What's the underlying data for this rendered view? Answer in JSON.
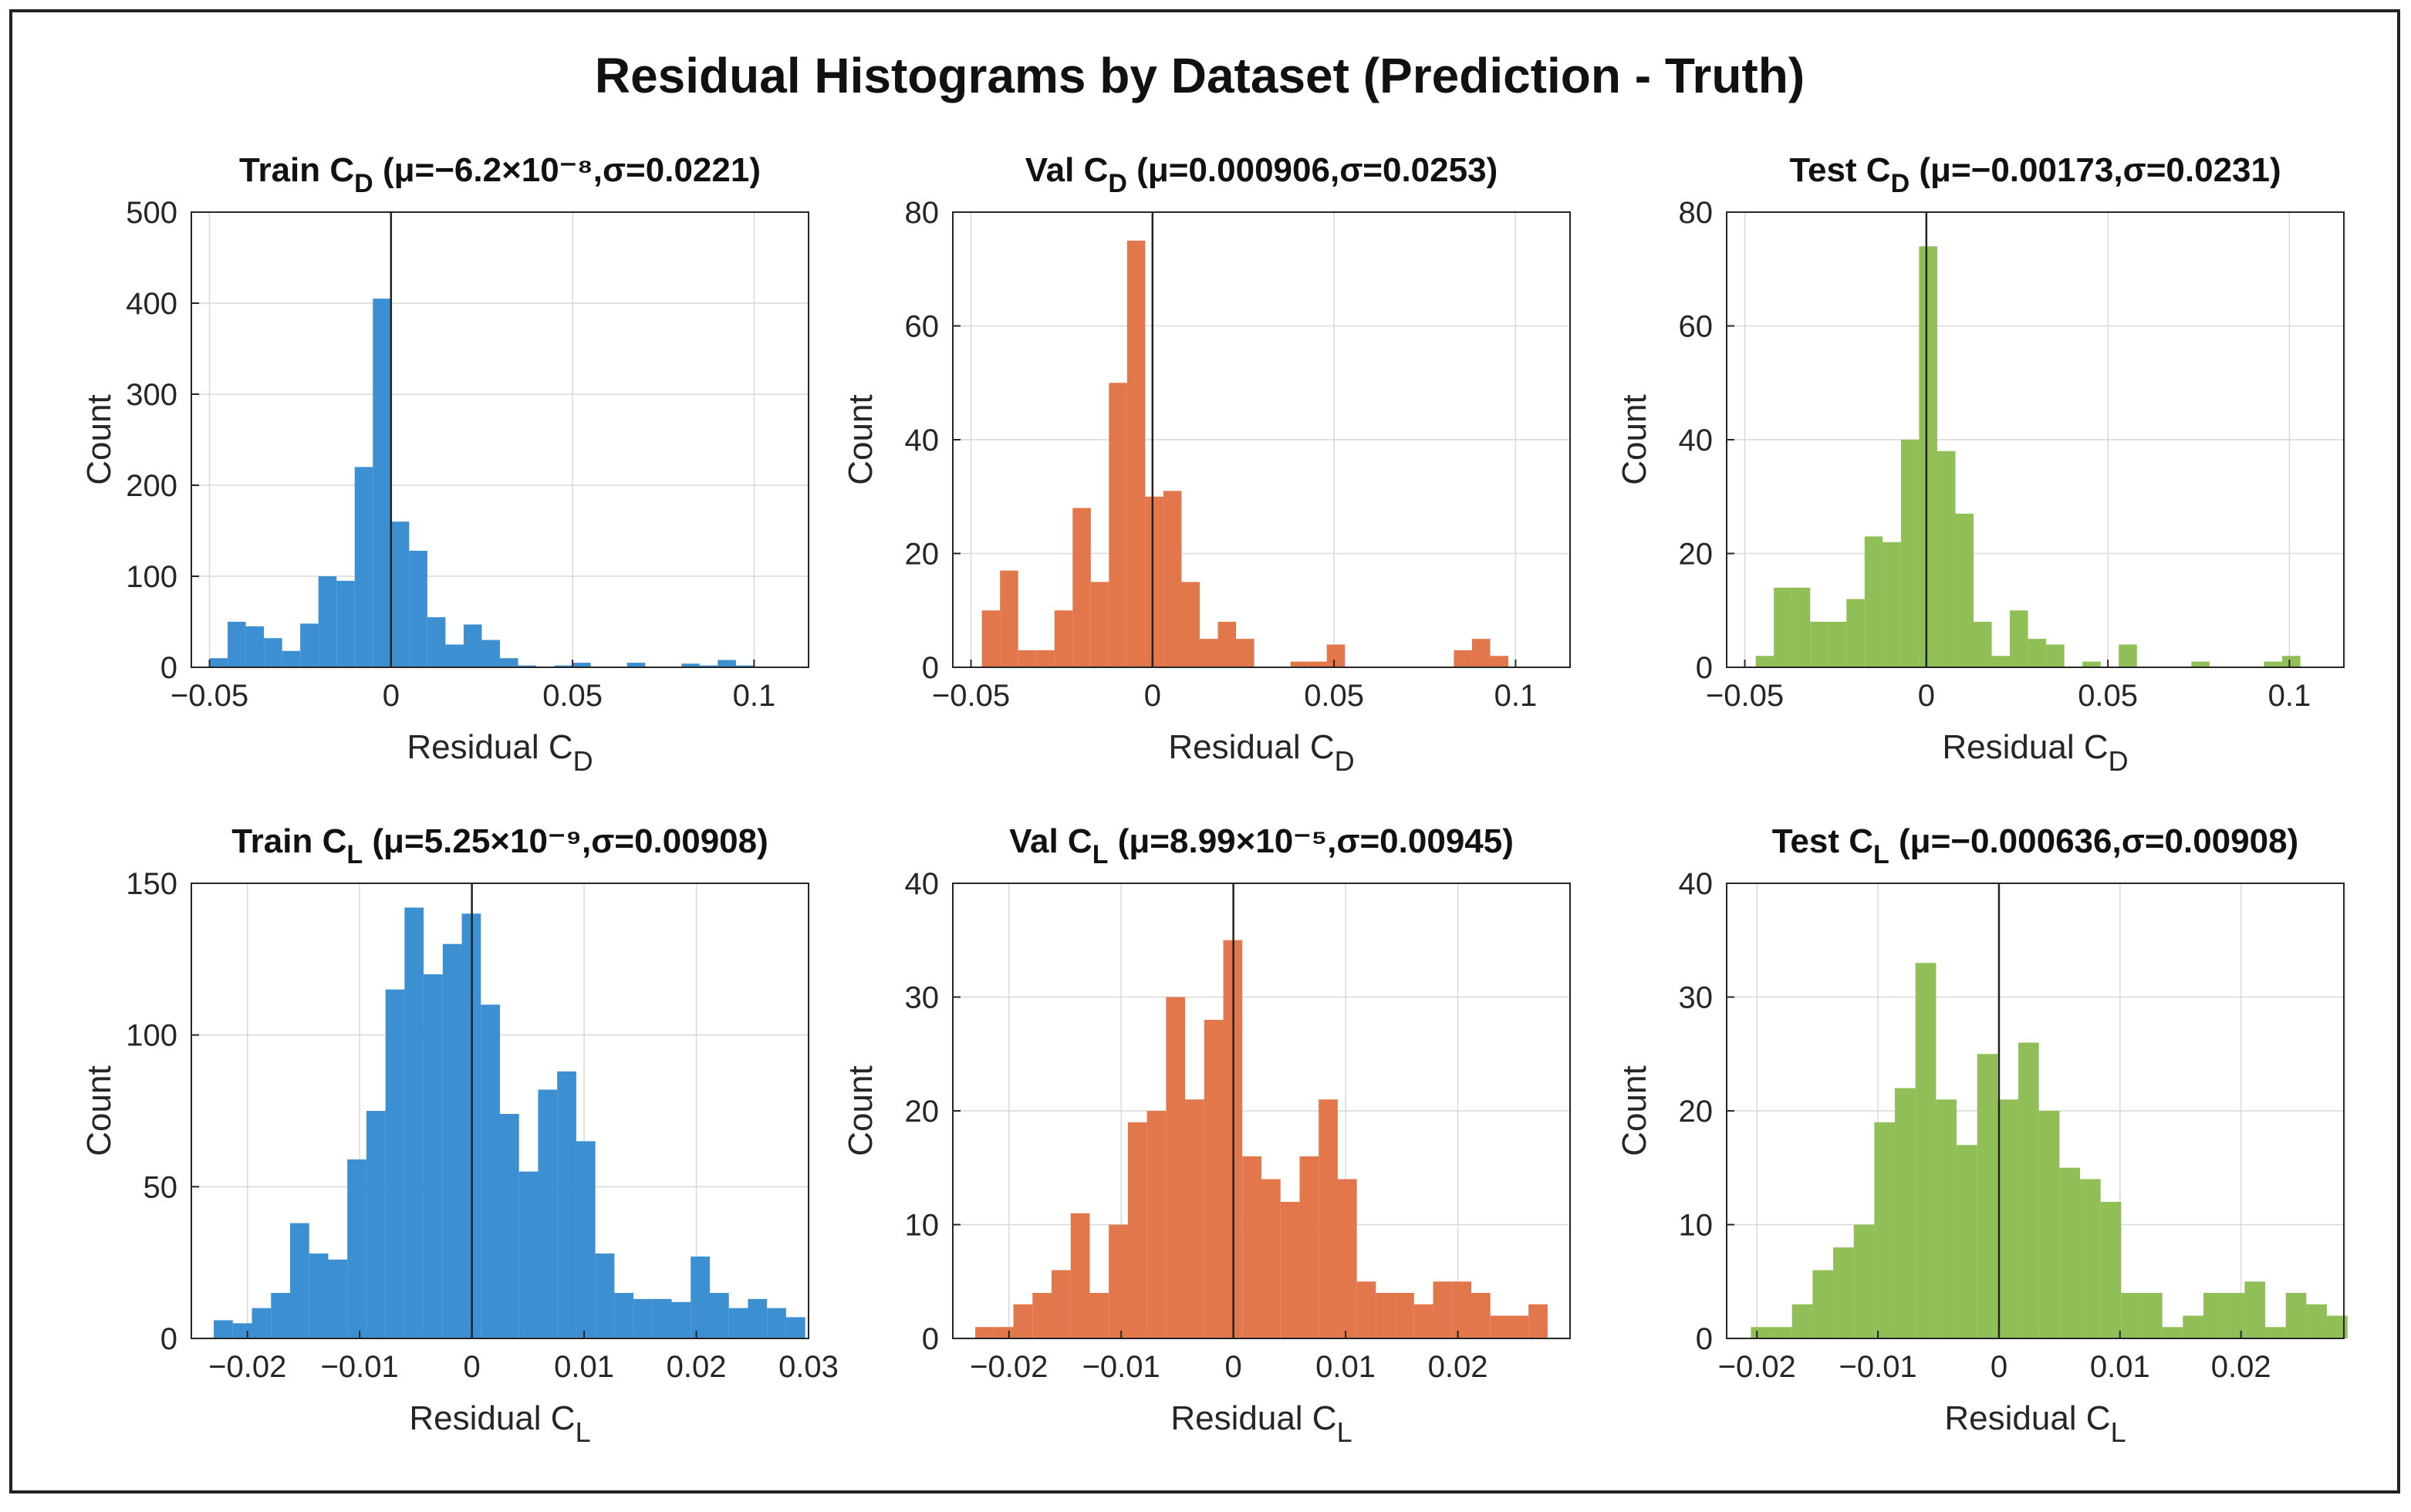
{
  "figure": {
    "title": "Residual Histograms by Dataset (Prediction - Truth)"
  },
  "colors": {
    "train": "#3c8fd0",
    "val": "#e2774c",
    "test": "#90bf57"
  },
  "chart_data": [
    {
      "type": "bar",
      "id": "train-cd",
      "dataset": "Train",
      "title_prefix": "Train C",
      "title_sub": "D",
      "title_stats": " (μ=−6.2×10⁻⁸,σ=0.0221)",
      "color_key": "train",
      "bin_start": -0.05,
      "bin_width": 0.005,
      "values": [
        10,
        50,
        45,
        32,
        18,
        48,
        100,
        95,
        220,
        405,
        160,
        128,
        55,
        25,
        47,
        30,
        10,
        2,
        0,
        2,
        5,
        0,
        0,
        5,
        0,
        0,
        4,
        2,
        8,
        2
      ],
      "xlim": [
        -0.055,
        0.115
      ],
      "ylim": [
        0,
        500
      ],
      "xticks": [
        -0.05,
        0,
        0.05,
        0.1
      ],
      "xtick_labels": [
        "−0.05",
        "0",
        "0.05",
        "0.1"
      ],
      "yticks": [
        0,
        100,
        200,
        300,
        400,
        500
      ],
      "ytick_labels": [
        "0",
        "100",
        "200",
        "300",
        "400",
        "500"
      ],
      "xlabel_prefix": "Residual C",
      "xlabel_sub": "D",
      "ylabel": "Count"
    },
    {
      "type": "bar",
      "id": "val-cd",
      "dataset": "Val",
      "title_prefix": "Val C",
      "title_sub": "D",
      "title_stats": " (μ=0.000906,σ=0.0253)",
      "color_key": "val",
      "bin_start": -0.047,
      "bin_width": 0.005,
      "values": [
        10,
        17,
        3,
        3,
        10,
        28,
        15,
        50,
        75,
        30,
        31,
        15,
        5,
        8,
        5,
        0,
        0,
        1,
        1,
        4,
        0,
        0,
        0,
        0,
        0,
        0,
        3,
        5,
        2
      ],
      "xlim": [
        -0.055,
        0.115
      ],
      "ylim": [
        0,
        80
      ],
      "xticks": [
        -0.05,
        0,
        0.05,
        0.1
      ],
      "xtick_labels": [
        "−0.05",
        "0",
        "0.05",
        "0.1"
      ],
      "yticks": [
        0,
        20,
        40,
        60,
        80
      ],
      "ytick_labels": [
        "0",
        "20",
        "40",
        "60",
        "80"
      ],
      "xlabel_prefix": "Residual C",
      "xlabel_sub": "D",
      "ylabel": "Count"
    },
    {
      "type": "bar",
      "id": "test-cd",
      "dataset": "Test",
      "title_prefix": "Test C",
      "title_sub": "D",
      "title_stats": " (μ=−0.00173,σ=0.0231)",
      "color_key": "test",
      "bin_start": -0.047,
      "bin_width": 0.005,
      "values": [
        2,
        14,
        14,
        8,
        8,
        12,
        23,
        22,
        40,
        74,
        38,
        27,
        8,
        2,
        10,
        5,
        4,
        0,
        1,
        0,
        4,
        0,
        0,
        0,
        1,
        0,
        0,
        0,
        1,
        2
      ],
      "xlim": [
        -0.055,
        0.115
      ],
      "ylim": [
        0,
        80
      ],
      "xticks": [
        -0.05,
        0,
        0.05,
        0.1
      ],
      "xtick_labels": [
        "−0.05",
        "0",
        "0.05",
        "0.1"
      ],
      "yticks": [
        0,
        20,
        40,
        60,
        80
      ],
      "ytick_labels": [
        "0",
        "20",
        "40",
        "60",
        "80"
      ],
      "xlabel_prefix": "Residual C",
      "xlabel_sub": "D",
      "ylabel": "Count"
    },
    {
      "type": "bar",
      "id": "train-cl",
      "dataset": "Train",
      "title_prefix": "Train C",
      "title_sub": "L",
      "title_stats": " (μ=5.25×10⁻⁹,σ=0.00908)",
      "color_key": "train",
      "bin_start": -0.023,
      "bin_width": 0.0017,
      "values": [
        6,
        5,
        10,
        15,
        38,
        28,
        26,
        59,
        75,
        115,
        142,
        120,
        130,
        140,
        110,
        74,
        55,
        82,
        88,
        65,
        28,
        15,
        13,
        13,
        12,
        27,
        15,
        10,
        13,
        10,
        7
      ],
      "xlim": [
        -0.025,
        0.03
      ],
      "ylim": [
        0,
        150
      ],
      "xticks": [
        -0.02,
        -0.01,
        0,
        0.01,
        0.02,
        0.03
      ],
      "xtick_labels": [
        "−0.02",
        "−0.01",
        "0",
        "0.01",
        "0.02",
        "0.03"
      ],
      "yticks": [
        0,
        50,
        100,
        150
      ],
      "ytick_labels": [
        "0",
        "50",
        "100",
        "150"
      ],
      "xlabel_prefix": "Residual C",
      "xlabel_sub": "L",
      "ylabel": "Count"
    },
    {
      "type": "bar",
      "id": "val-cl",
      "dataset": "Val",
      "title_prefix": "Val C",
      "title_sub": "L",
      "title_stats": " (μ=8.99×10⁻⁵,σ=0.00945)",
      "color_key": "val",
      "bin_start": -0.023,
      "bin_width": 0.0017,
      "values": [
        1,
        1,
        3,
        4,
        6,
        11,
        4,
        10,
        19,
        20,
        30,
        21,
        28,
        35,
        16,
        14,
        12,
        16,
        21,
        14,
        5,
        4,
        4,
        3,
        5,
        5,
        4,
        2,
        2,
        3
      ],
      "xlim": [
        -0.025,
        0.03
      ],
      "ylim": [
        0,
        40
      ],
      "xticks": [
        -0.02,
        -0.01,
        0,
        0.01,
        0.02
      ],
      "xtick_labels": [
        "−0.02",
        "−0.01",
        "0",
        "0.01",
        "0.02"
      ],
      "yticks": [
        0,
        10,
        20,
        30,
        40
      ],
      "ytick_labels": [
        "0",
        "10",
        "20",
        "30",
        "40"
      ],
      "xlabel_prefix": "Residual C",
      "xlabel_sub": "L",
      "ylabel": "Count"
    },
    {
      "type": "bar",
      "id": "test-cl",
      "dataset": "Test",
      "title_prefix": "Test C",
      "title_sub": "L",
      "title_stats": " (μ=−0.000636,σ=0.00908)",
      "color_key": "test",
      "bin_start": -0.0205,
      "bin_width": 0.0017,
      "values": [
        1,
        1,
        3,
        6,
        8,
        10,
        19,
        22,
        33,
        21,
        17,
        25,
        21,
        26,
        20,
        15,
        14,
        12,
        4,
        4,
        1,
        2,
        4,
        4,
        5,
        1,
        4,
        3,
        2
      ],
      "xlim": [
        -0.0225,
        0.0285
      ],
      "ylim": [
        0,
        40
      ],
      "xticks": [
        -0.02,
        -0.01,
        0,
        0.01,
        0.02
      ],
      "xtick_labels": [
        "−0.02",
        "−0.01",
        "0",
        "0.01",
        "0.02"
      ],
      "yticks": [
        0,
        10,
        20,
        30,
        40
      ],
      "ytick_labels": [
        "0",
        "10",
        "20",
        "30",
        "40"
      ],
      "xlabel_prefix": "Residual C",
      "xlabel_sub": "L",
      "ylabel": "Count"
    }
  ]
}
